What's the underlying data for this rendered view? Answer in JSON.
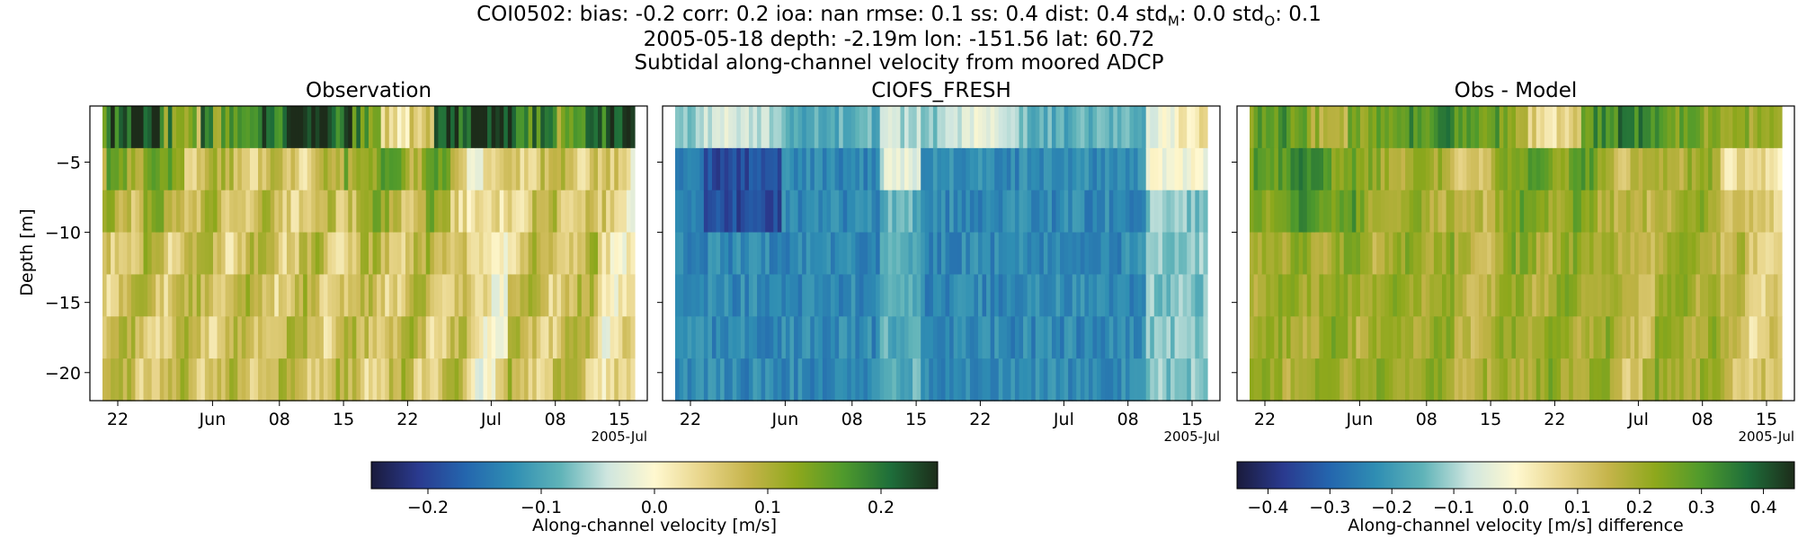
{
  "header": {
    "line1_prefix": "COI0502: bias: -0.2  corr: 0.2  ioa: nan  rmse: 0.1  ss: 0.4  dist: 0.4  std",
    "std_m_sub": "M",
    "std_m_value": ": 0.0  std",
    "std_o_sub": "O",
    "std_o_value": ": 0.1",
    "line2": "2005-05-18 depth: -2.19m lon: -151.56 lat: 60.72",
    "line3": "Subtidal along-channel velocity from moored ADCP"
  },
  "chart_data": [
    {
      "type": "heatmap",
      "title": "Observation",
      "ylabel": "Depth [m]",
      "xlabel": "",
      "x_ticks": [
        "22",
        "Jun",
        "08",
        "15",
        "22",
        "Jul",
        "08",
        "15"
      ],
      "x_offset_label": "2005-Jul",
      "y_ticks": [
        -5,
        -10,
        -15,
        -20
      ],
      "ylim": [
        -22,
        -1
      ],
      "depth_bins": [
        -2.2,
        -5.2,
        -8.2,
        -11.2,
        -14.2,
        -17.2,
        -20.2
      ],
      "colorbar": {
        "label": "Along-channel velocity [m/s]",
        "range": [
          -0.25,
          0.25
        ],
        "ticks": [
          "−0.2",
          "−0.1",
          "0.0",
          "0.1",
          "0.2"
        ]
      },
      "description_values": "mostly positive 0.02-0.15 m/s; surface bin ~0.2-0.25 m/s"
    },
    {
      "type": "heatmap",
      "title": "CIOFS_FRESH",
      "x_ticks": [
        "22",
        "Jun",
        "08",
        "15",
        "22",
        "Jul",
        "08",
        "15"
      ],
      "x_offset_label": "2005-Jul",
      "ylim": [
        -22,
        -1
      ],
      "colorbar": {
        "range": [
          -0.25,
          0.25
        ]
      }
    },
    {
      "type": "heatmap",
      "title": "Obs - Model",
      "x_ticks": [
        "22",
        "Jun",
        "08",
        "15",
        "22",
        "Jul",
        "08",
        "15"
      ],
      "x_offset_label": "2005-Jul",
      "ylim": [
        -22,
        -1
      ],
      "colorbar": {
        "label": "Along-channel velocity [m/s] difference",
        "range": [
          -0.45,
          0.45
        ],
        "ticks": [
          "−0.4",
          "−0.3",
          "−0.2",
          "−0.1",
          "0.0",
          "0.1",
          "0.2",
          "0.3",
          "0.4"
        ]
      }
    }
  ],
  "colormap": [
    "#1a1b3c",
    "#2a3a8f",
    "#2466ae",
    "#2f8eb3",
    "#5fb3b8",
    "#cfe6df",
    "#fff8d0",
    "#e8d58a",
    "#c5b44a",
    "#8ea81c",
    "#4f9a2c",
    "#1e6e3a",
    "#1d2c1a"
  ]
}
